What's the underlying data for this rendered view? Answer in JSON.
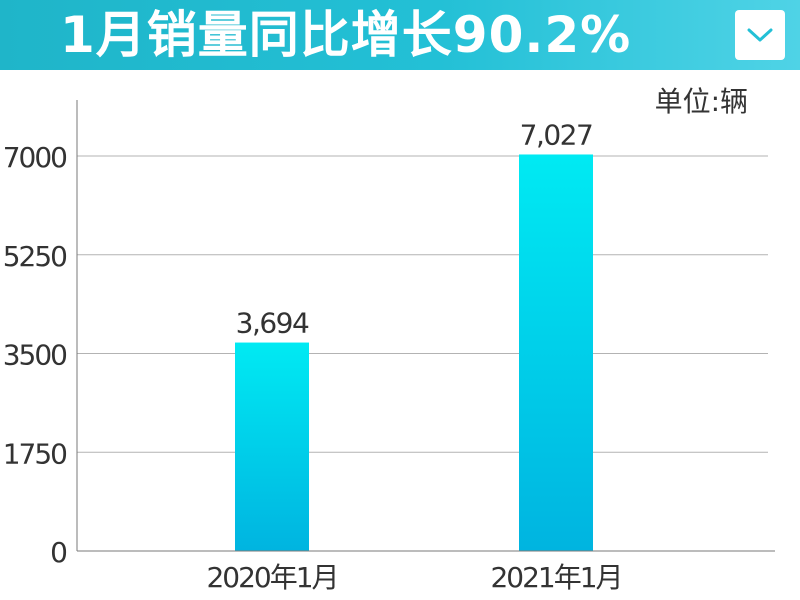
{
  "header": {
    "title": "1月销量同比增长90.2%",
    "accent_color": "#23c0d6",
    "dropdown_icon": "chevron-down-icon"
  },
  "unit_label": "单位:辆",
  "chart_data": {
    "type": "bar",
    "title": "1月销量同比增长90.2%",
    "categories": [
      "2020年1月",
      "2021年1月"
    ],
    "values": [
      3694,
      7027
    ],
    "value_labels": [
      "3,694",
      "7,027"
    ],
    "yticks": [
      0,
      1750,
      3500,
      5250,
      7000
    ],
    "ylim": [
      0,
      7700
    ],
    "grid": true,
    "bar_color_top": "#00eaf3",
    "bar_color_bottom": "#00b4e0",
    "xlabel": "",
    "ylabel": ""
  }
}
